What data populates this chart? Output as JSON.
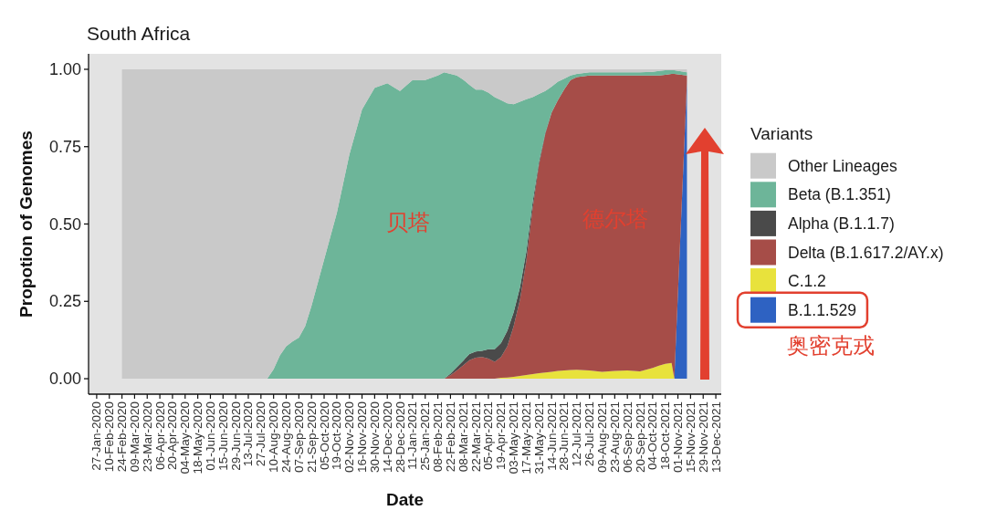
{
  "chart_data": {
    "type": "area",
    "stacked": true,
    "title": "South Africa",
    "xlabel": "Date",
    "ylabel": "Propotion of Genomes",
    "legend_title": "Variants",
    "legend": "right",
    "x": [
      "2020-02-24",
      "2020-08-03",
      "2020-08-10",
      "2020-08-17",
      "2020-08-24",
      "2020-08-31",
      "2020-09-07",
      "2020-09-14",
      "2020-09-21",
      "2020-10-05",
      "2020-10-19",
      "2020-11-02",
      "2020-11-16",
      "2020-11-30",
      "2020-12-14",
      "2020-12-28",
      "2021-01-11",
      "2021-01-25",
      "2021-02-08",
      "2021-02-15",
      "2021-02-22",
      "2021-03-01",
      "2021-03-08",
      "2021-03-15",
      "2021-03-22",
      "2021-03-29",
      "2021-04-05",
      "2021-04-12",
      "2021-04-19",
      "2021-04-26",
      "2021-05-03",
      "2021-05-10",
      "2021-05-17",
      "2021-05-24",
      "2021-05-31",
      "2021-06-07",
      "2021-06-14",
      "2021-06-21",
      "2021-06-28",
      "2021-07-05",
      "2021-07-12",
      "2021-07-26",
      "2021-08-09",
      "2021-08-23",
      "2021-09-06",
      "2021-09-20",
      "2021-10-04",
      "2021-10-11",
      "2021-10-18",
      "2021-10-25",
      "2021-10-28",
      "2021-11-11"
    ],
    "xlim": [
      "2020-01-18",
      "2021-12-19"
    ],
    "xticks": [
      {
        "value": "2020-01-27",
        "label": "27-Jan-2020"
      },
      {
        "value": "2020-02-10",
        "label": "10-Feb-2020"
      },
      {
        "value": "2020-02-24",
        "label": "24-Feb-2020"
      },
      {
        "value": "2020-03-09",
        "label": "09-Mar-2020"
      },
      {
        "value": "2020-03-23",
        "label": "23-Mar-2020"
      },
      {
        "value": "2020-04-06",
        "label": "06-Apr-2020"
      },
      {
        "value": "2020-04-20",
        "label": "20-Apr-2020"
      },
      {
        "value": "2020-05-04",
        "label": "04-May-2020"
      },
      {
        "value": "2020-05-18",
        "label": "18-May-2020"
      },
      {
        "value": "2020-06-01",
        "label": "01-Jun-2020"
      },
      {
        "value": "2020-06-15",
        "label": "15-Jun-2020"
      },
      {
        "value": "2020-06-29",
        "label": "29-Jun-2020"
      },
      {
        "value": "2020-07-13",
        "label": "13-Jul-2020"
      },
      {
        "value": "2020-07-27",
        "label": "27-Jul-2020"
      },
      {
        "value": "2020-08-10",
        "label": "10-Aug-2020"
      },
      {
        "value": "2020-08-24",
        "label": "24-Aug-2020"
      },
      {
        "value": "2020-09-07",
        "label": "07-Sep-2020"
      },
      {
        "value": "2020-09-21",
        "label": "21-Sep-2020"
      },
      {
        "value": "2020-10-05",
        "label": "05-Oct-2020"
      },
      {
        "value": "2020-10-19",
        "label": "19-Oct-2020"
      },
      {
        "value": "2020-11-02",
        "label": "02-Nov-2020"
      },
      {
        "value": "2020-11-16",
        "label": "16-Nov-2020"
      },
      {
        "value": "2020-11-30",
        "label": "30-Nov-2020"
      },
      {
        "value": "2020-12-14",
        "label": "14-Dec-2020"
      },
      {
        "value": "2020-12-28",
        "label": "28-Dec-2020"
      },
      {
        "value": "2021-01-11",
        "label": "11-Jan-2021"
      },
      {
        "value": "2021-01-25",
        "label": "25-Jan-2021"
      },
      {
        "value": "2021-02-08",
        "label": "08-Feb-2021"
      },
      {
        "value": "2021-02-22",
        "label": "22-Feb-2021"
      },
      {
        "value": "2021-03-08",
        "label": "08-Mar-2021"
      },
      {
        "value": "2021-03-22",
        "label": "22-Mar-2021"
      },
      {
        "value": "2021-04-05",
        "label": "05-Apr-2021"
      },
      {
        "value": "2021-04-19",
        "label": "19-Apr-2021"
      },
      {
        "value": "2021-05-03",
        "label": "03-May-2021"
      },
      {
        "value": "2021-05-17",
        "label": "17-May-2021"
      },
      {
        "value": "2021-05-31",
        "label": "31-May-2021"
      },
      {
        "value": "2021-06-14",
        "label": "14-Jun-2021"
      },
      {
        "value": "2021-06-28",
        "label": "28-Jun-2021"
      },
      {
        "value": "2021-07-12",
        "label": "12-Jul-2021"
      },
      {
        "value": "2021-07-26",
        "label": "26-Jul-2021"
      },
      {
        "value": "2021-08-09",
        "label": "09-Aug-2021"
      },
      {
        "value": "2021-08-23",
        "label": "23-Aug-2021"
      },
      {
        "value": "2021-09-06",
        "label": "06-Sep-2021"
      },
      {
        "value": "2021-09-20",
        "label": "20-Sep-2021"
      },
      {
        "value": "2021-10-04",
        "label": "04-Oct-2021"
      },
      {
        "value": "2021-10-18",
        "label": "18-Oct-2021"
      },
      {
        "value": "2021-11-01",
        "label": "01-Nov-2021"
      },
      {
        "value": "2021-11-15",
        "label": "15-Nov-2021"
      },
      {
        "value": "2021-11-29",
        "label": "29-Nov-2021"
      },
      {
        "value": "2021-12-13",
        "label": "13-Dec-2021"
      }
    ],
    "ylim": [
      -0.05,
      1.05
    ],
    "yticks": [
      {
        "value": 0,
        "label": "0.00"
      },
      {
        "value": 0.25,
        "label": "0.25"
      },
      {
        "value": 0.5,
        "label": "0.50"
      },
      {
        "value": 0.75,
        "label": "0.75"
      },
      {
        "value": 1,
        "label": "1.00"
      }
    ],
    "series": [
      {
        "name": "B.1.1.529",
        "color": "#2e62c2",
        "values": [
          null,
          null,
          null,
          null,
          null,
          null,
          null,
          null,
          null,
          null,
          null,
          null,
          null,
          null,
          null,
          null,
          null,
          null,
          null,
          null,
          null,
          null,
          null,
          null,
          null,
          null,
          null,
          null,
          null,
          null,
          null,
          null,
          null,
          null,
          null,
          null,
          null,
          null,
          null,
          null,
          null,
          null,
          null,
          null,
          null,
          null,
          null,
          null,
          null,
          null,
          0,
          0.96
        ]
      },
      {
        "name": "C.1.2",
        "color": "#e8e23c",
        "values": [
          null,
          null,
          null,
          null,
          null,
          null,
          null,
          null,
          null,
          null,
          null,
          null,
          null,
          null,
          null,
          null,
          null,
          null,
          null,
          null,
          null,
          null,
          null,
          null,
          null,
          null,
          null,
          0,
          0.003,
          0.004,
          0.006,
          0.009,
          0.012,
          0.015,
          0.018,
          0.02,
          0.022,
          0.025,
          0.027,
          0.028,
          0.029,
          0.027,
          0.022,
          0.025,
          0.027,
          0.024,
          0.035,
          0.042,
          0.048,
          0.051,
          0,
          null
        ]
      },
      {
        "name": "Delta (B.1.617.2/AY.x)",
        "color": "#a64d48",
        "values": [
          null,
          null,
          null,
          null,
          null,
          null,
          null,
          null,
          null,
          null,
          null,
          null,
          null,
          null,
          null,
          null,
          null,
          null,
          null,
          0,
          0.011,
          0.027,
          0.043,
          0.06,
          0.068,
          0.07,
          0.065,
          0.055,
          0.067,
          0.101,
          0.164,
          0.246,
          0.368,
          0.535,
          0.672,
          0.77,
          0.838,
          0.875,
          0.908,
          0.937,
          0.946,
          0.953,
          0.958,
          0.955,
          0.953,
          0.956,
          0.945,
          0.938,
          0.934,
          0.934,
          0.985,
          0.02
        ]
      },
      {
        "name": "Alpha (B.1.1.7)",
        "color": "#4a4a4a",
        "values": [
          null,
          null,
          null,
          null,
          null,
          null,
          null,
          null,
          null,
          null,
          null,
          null,
          null,
          null,
          null,
          null,
          null,
          null,
          null,
          0,
          0.005,
          0.01,
          0.015,
          0.02,
          0.02,
          0.02,
          0.03,
          0.04,
          0.045,
          0.05,
          0.045,
          0.04,
          0.03,
          0.02,
          0.01,
          0.005,
          0,
          null,
          null,
          null,
          null,
          null,
          null,
          null,
          null,
          null,
          null,
          null,
          null,
          null,
          null,
          null
        ]
      },
      {
        "name": "Beta (B.1.351)",
        "color": "#6db599",
        "values": [
          null,
          0,
          0.03,
          0.075,
          0.105,
          0.12,
          0.133,
          0.17,
          0.235,
          0.385,
          0.535,
          0.725,
          0.87,
          0.94,
          0.955,
          0.93,
          0.965,
          0.965,
          0.98,
          0.99,
          0.969,
          0.943,
          0.909,
          0.87,
          0.846,
          0.844,
          0.83,
          0.815,
          0.785,
          0.735,
          0.672,
          0.6,
          0.493,
          0.34,
          0.22,
          0.135,
          0.084,
          0.06,
          0.035,
          0.015,
          0.01,
          0.01,
          0.01,
          0.01,
          0.01,
          0.01,
          0.012,
          0.015,
          0.015,
          0.012,
          0.012,
          0.01
        ]
      },
      {
        "name": "Other Lineages",
        "color": "#c9c9c9",
        "values": [
          1,
          1,
          0.97,
          0.925,
          0.895,
          0.88,
          0.867,
          0.83,
          0.765,
          0.615,
          0.465,
          0.275,
          0.13,
          0.06,
          0.045,
          0.07,
          0.035,
          0.035,
          0.02,
          0.01,
          0.015,
          0.02,
          0.033,
          0.05,
          0.066,
          0.066,
          0.075,
          0.09,
          0.1,
          0.11,
          0.113,
          0.105,
          0.097,
          0.09,
          0.08,
          0.07,
          0.056,
          0.04,
          0.03,
          0.02,
          0.015,
          0.01,
          0.01,
          0.01,
          0.01,
          0.01,
          0.008,
          0.005,
          0.003,
          0.003,
          0.003,
          0.01
        ]
      }
    ],
    "annotations": [
      "贝塔",
      "德尔塔",
      "奥密克戎"
    ]
  }
}
